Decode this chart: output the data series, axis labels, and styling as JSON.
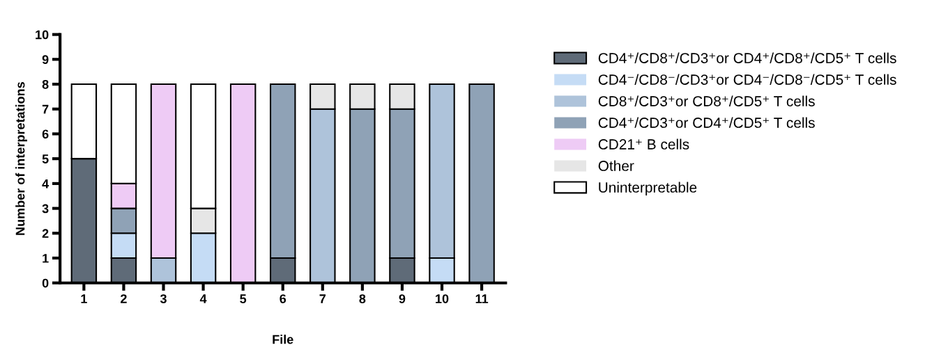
{
  "chart_data": {
    "type": "bar",
    "stacked": true,
    "xlabel": "File",
    "ylabel": "Number of interpretations",
    "categories": [
      "1",
      "2",
      "3",
      "4",
      "5",
      "6",
      "7",
      "8",
      "9",
      "10",
      "11"
    ],
    "ylim": [
      0,
      10
    ],
    "yticks": [
      0,
      1,
      2,
      3,
      4,
      5,
      6,
      7,
      8,
      9,
      10
    ],
    "grid": false,
    "legend": "right",
    "series": [
      {
        "name": "CD4⁺/CD8⁺/CD3⁺or CD4⁺/CD8⁺/CD5⁺ T cells",
        "color": "#5f6b78",
        "values": [
          5,
          1,
          0,
          0,
          0,
          1,
          0,
          0,
          1,
          0,
          0
        ]
      },
      {
        "name": "CD4⁻/CD8⁻/CD3⁺or CD4⁻/CD8⁻/CD5⁺ T cells",
        "color": "#c5dcf5",
        "values": [
          0,
          1,
          0,
          2,
          0,
          0,
          0,
          0,
          0,
          1,
          0
        ]
      },
      {
        "name": "CD8⁺/CD3⁺or CD8⁺/CD5⁺ T cells",
        "color": "#aec3da",
        "values": [
          0,
          0,
          1,
          0,
          0,
          0,
          7,
          0,
          0,
          7,
          0
        ]
      },
      {
        "name": "CD4⁺/CD3⁺or CD4⁺/CD5⁺ T cells",
        "color": "#8fa2b6",
        "values": [
          0,
          1,
          0,
          0,
          0,
          7,
          0,
          7,
          6,
          0,
          8
        ]
      },
      {
        "name": "CD21⁺ B cells",
        "color": "#eecbf5",
        "values": [
          0,
          1,
          7,
          0,
          8,
          0,
          0,
          0,
          0,
          0,
          0
        ]
      },
      {
        "name": "Other",
        "color": "#e6e6e6",
        "values": [
          0,
          0,
          0,
          1,
          0,
          0,
          1,
          1,
          1,
          0,
          0
        ]
      },
      {
        "name": "Uninterpretable",
        "color": "#ffffff",
        "values": [
          3,
          4,
          0,
          5,
          0,
          0,
          0,
          0,
          0,
          0,
          0
        ]
      }
    ]
  }
}
